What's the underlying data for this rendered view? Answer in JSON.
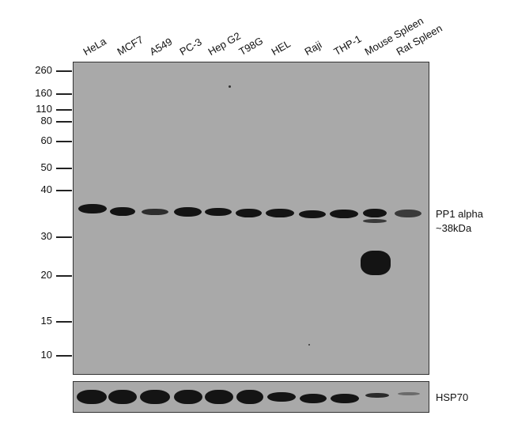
{
  "lanes": [
    "HeLa",
    "MCF7",
    "A549",
    "PC-3",
    "Hep G2",
    "T98G",
    "HEL",
    "Raji",
    "THP-1",
    "Mouse Spleen",
    "Rat Spleen"
  ],
  "markers": [
    "260",
    "160",
    "110",
    "80",
    "60",
    "50",
    "40",
    "30",
    "20",
    "15",
    "10"
  ],
  "target": {
    "name": "PP1 alpha",
    "size": "~38kDa"
  },
  "loading_control": "HSP70",
  "colors": {
    "membrane": "#a9a9a9",
    "band": "#141414",
    "text": "#111111"
  }
}
